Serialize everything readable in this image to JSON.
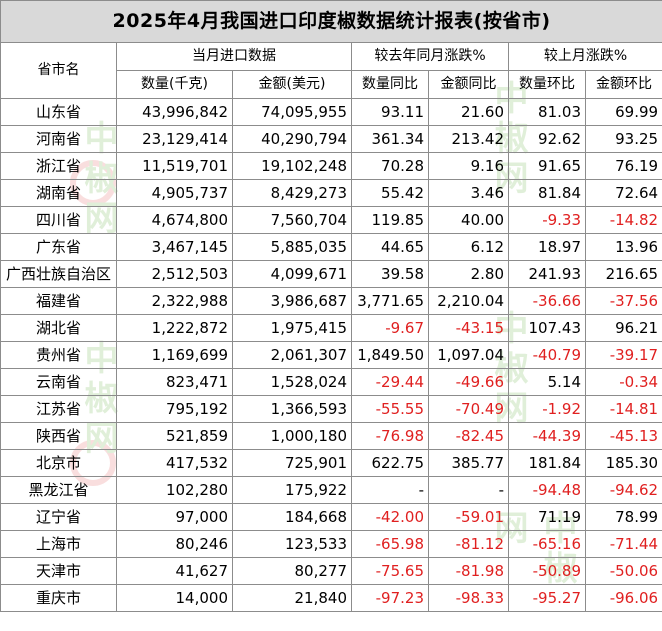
{
  "report": {
    "title": "2025年4月我国进口印度椒数据统计报表(按省市)",
    "headers": {
      "province": "省市名",
      "group_current": "当月进口数据",
      "group_yoy": "较去年同月涨跌%",
      "group_mom": "较上月涨跌%",
      "qty": "数量(千克)",
      "amount": "金额(美元)",
      "qty_yoy": "数量同比",
      "amount_yoy": "金额同比",
      "qty_mom": "数量环比",
      "amount_mom": "金额环比"
    },
    "rows": [
      [
        "山东省",
        "43,996,842",
        "74,095,955",
        "93.11",
        "21.60",
        "81.03",
        "69.99"
      ],
      [
        "河南省",
        "23,129,414",
        "40,290,794",
        "361.34",
        "213.42",
        "92.62",
        "93.25"
      ],
      [
        "浙江省",
        "11,519,701",
        "19,102,248",
        "70.28",
        "9.16",
        "91.65",
        "76.19"
      ],
      [
        "湖南省",
        "4,905,737",
        "8,429,273",
        "55.42",
        "3.46",
        "81.84",
        "72.64"
      ],
      [
        "四川省",
        "4,674,800",
        "7,560,704",
        "119.85",
        "40.00",
        "-9.33",
        "-14.82"
      ],
      [
        "广东省",
        "3,467,145",
        "5,885,035",
        "44.65",
        "6.12",
        "18.97",
        "13.96"
      ],
      [
        "广西壮族自治区",
        "2,512,503",
        "4,099,671",
        "39.58",
        "2.80",
        "241.93",
        "216.65"
      ],
      [
        "福建省",
        "2,322,988",
        "3,986,687",
        "3,771.65",
        "2,210.04",
        "-36.66",
        "-37.56"
      ],
      [
        "湖北省",
        "1,222,872",
        "1,975,415",
        "-9.67",
        "-43.15",
        "107.43",
        "96.21"
      ],
      [
        "贵州省",
        "1,169,699",
        "2,061,307",
        "1,849.50",
        "1,097.04",
        "-40.79",
        "-39.17"
      ],
      [
        "云南省",
        "823,471",
        "1,528,024",
        "-29.44",
        "-49.66",
        "5.14",
        "-0.34"
      ],
      [
        "江苏省",
        "795,192",
        "1,366,593",
        "-55.55",
        "-70.49",
        "-1.92",
        "-14.81"
      ],
      [
        "陕西省",
        "521,859",
        "1,000,180",
        "-76.98",
        "-82.45",
        "-44.39",
        "-45.13"
      ],
      [
        "北京市",
        "417,532",
        "725,901",
        "622.75",
        "385.77",
        "181.84",
        "185.30"
      ],
      [
        "黑龙江省",
        "102,280",
        "175,922",
        "-",
        "-",
        "-94.48",
        "-94.62"
      ],
      [
        "辽宁省",
        "97,000",
        "184,668",
        "-42.00",
        "-59.01",
        "71.19",
        "78.99"
      ],
      [
        "上海市",
        "80,246",
        "123,533",
        "-65.98",
        "-81.12",
        "-65.16",
        "-71.44"
      ],
      [
        "天津市",
        "41,627",
        "80,277",
        "-75.65",
        "-81.98",
        "-50.89",
        "-50.06"
      ],
      [
        "重庆市",
        "14,000",
        "21,840",
        "-97.23",
        "-98.33",
        "-95.27",
        "-96.06"
      ]
    ],
    "colors": {
      "header_bg": "#d9d9d9",
      "border": "#8c8c8c",
      "negative": "#e02020",
      "text": "#000000"
    }
  },
  "watermark": {
    "brand": "中椒网",
    "icon": "chili-logo-icon"
  }
}
